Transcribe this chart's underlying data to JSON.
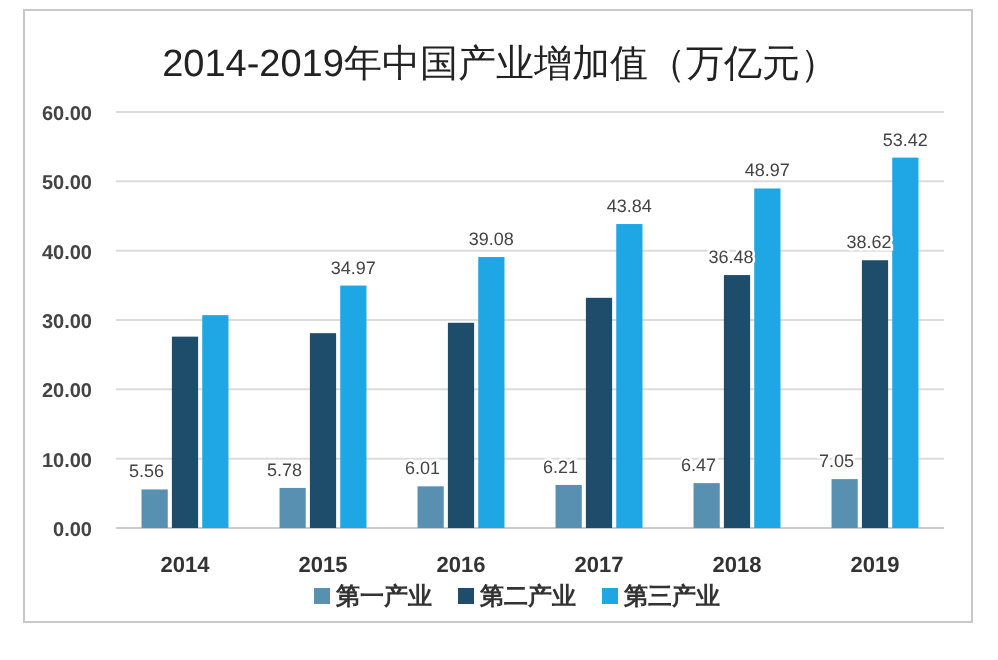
{
  "chart_data": {
    "type": "bar",
    "title": "2014-2019年中国产业增加值（万亿元）",
    "categories": [
      "2014",
      "2015",
      "2016",
      "2017",
      "2018",
      "2019"
    ],
    "series": [
      {
        "name": "第一产业",
        "color": "#5790b0",
        "values": [
          5.56,
          5.78,
          6.01,
          6.21,
          6.47,
          7.05
        ],
        "value_labels": [
          "5.56",
          "5.78",
          "6.01",
          "6.21",
          "6.47",
          "7.05"
        ]
      },
      {
        "name": "第二产业",
        "color": "#1e4d6b",
        "values": [
          27.6,
          28.1,
          29.6,
          33.2,
          36.48,
          38.62
        ],
        "value_labels": [
          null,
          null,
          null,
          null,
          "36.48",
          "38.62"
        ]
      },
      {
        "name": "第三产业",
        "color": "#1ea7e4",
        "values": [
          30.7,
          34.97,
          39.08,
          43.84,
          48.97,
          53.42
        ],
        "value_labels": [
          null,
          "34.97",
          "39.08",
          "43.84",
          "48.97",
          "53.42"
        ]
      }
    ],
    "ylim": [
      0,
      60
    ],
    "yticks": [
      {
        "value": 0,
        "label": "0.00"
      },
      {
        "value": 10,
        "label": "10.00"
      },
      {
        "value": 20,
        "label": "20.00"
      },
      {
        "value": 30,
        "label": "30.00"
      },
      {
        "value": 40,
        "label": "40.00"
      },
      {
        "value": 50,
        "label": "50.00"
      },
      {
        "value": 60,
        "label": "60.00"
      }
    ],
    "grid": "y",
    "legend": "bottom"
  }
}
